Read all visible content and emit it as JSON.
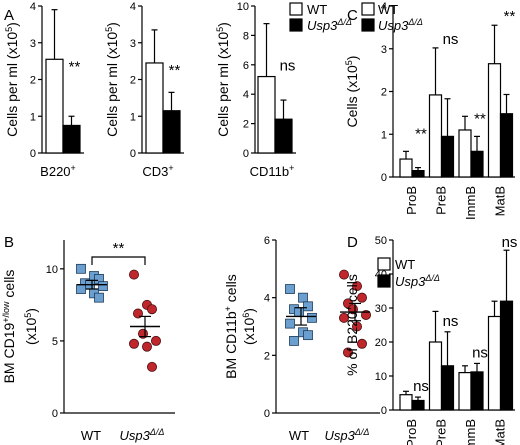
{
  "panel_labels": [
    "A",
    "B",
    "C",
    "D"
  ],
  "legend": {
    "wt": "WT",
    "ko": "Usp3",
    "ko_sup": "Δ/Δ"
  },
  "colors": {
    "wt_fill": "#ffffff",
    "ko_fill": "#000000",
    "wt_dot": "#6a9fd0",
    "ko_dot": "#c0272d"
  },
  "chart_data": [
    {
      "id": "A1",
      "type": "bar",
      "panel": "A",
      "ylabel": "Cells per ml (x10",
      "ylabel_sup": "5",
      "ylabel_end": ")",
      "xlabel": "B220",
      "xlabel_sup": "+",
      "ylim": [
        0,
        4
      ],
      "yticks": [
        0,
        1,
        2,
        3,
        4
      ],
      "series": [
        {
          "name": "WT",
          "values": [
            2.55
          ],
          "errors": [
            1.35
          ]
        },
        {
          "name": "Usp3Δ/Δ",
          "values": [
            0.75
          ],
          "errors": [
            0.25
          ]
        }
      ],
      "annotation": "**"
    },
    {
      "id": "A2",
      "type": "bar",
      "panel": "A",
      "ylabel": "Cells per ml (x10",
      "ylabel_sup": "5",
      "ylabel_end": ")",
      "xlabel": "CD3",
      "xlabel_sup": "+",
      "ylim": [
        0,
        4
      ],
      "yticks": [
        0,
        1,
        2,
        3,
        4
      ],
      "series": [
        {
          "name": "WT",
          "values": [
            2.45
          ],
          "errors": [
            0.9
          ]
        },
        {
          "name": "Usp3Δ/Δ",
          "values": [
            1.15
          ],
          "errors": [
            0.5
          ]
        }
      ],
      "annotation": "**"
    },
    {
      "id": "A3",
      "type": "bar",
      "panel": "A",
      "ylabel": "Cells per ml (x10",
      "ylabel_sup": "5",
      "ylabel_end": ")",
      "xlabel": "CD11b",
      "xlabel_sup": "+",
      "ylim": [
        0,
        10
      ],
      "yticks": [
        0,
        2,
        4,
        6,
        8,
        10
      ],
      "series": [
        {
          "name": "WT",
          "values": [
            5.2
          ],
          "errors": [
            3.6
          ]
        },
        {
          "name": "Usp3Δ/Δ",
          "values": [
            2.3
          ],
          "errors": [
            1.3
          ]
        }
      ],
      "annotation": "ns"
    },
    {
      "id": "B1",
      "type": "scatter",
      "panel": "B",
      "ylabel": "BM CD19",
      "ylabel_sup": "+/low",
      "ylabel_end": " cells",
      "ylabel2": "(x10",
      "ylabel2_sup": "5",
      "ylabel2_end": ")",
      "categories": [
        "WT",
        "Usp3"
      ],
      "category_sup": [
        "",
        "Δ/Δ"
      ],
      "ylim": [
        0,
        12
      ],
      "yticks": [
        0,
        5,
        10
      ],
      "series": [
        {
          "name": "WT",
          "values": [
            10.0,
            9.5,
            9.3,
            9.0,
            8.9,
            8.8,
            8.6,
            8.3,
            8.0
          ],
          "mean": 8.9,
          "sem": 0.3
        },
        {
          "name": "Usp3Δ/Δ",
          "values": [
            9.6,
            7.5,
            7.2,
            6.9,
            5.5,
            5.0,
            4.8,
            4.6,
            3.2
          ],
          "mean": 6.0,
          "sem": 0.7
        }
      ],
      "annotation": "**"
    },
    {
      "id": "B2",
      "type": "scatter",
      "panel": "B",
      "ylabel": "BM CD11b",
      "ylabel_sup": "+",
      "ylabel_end": " cells",
      "ylabel2": "(x10",
      "ylabel2_sup": "6",
      "ylabel2_end": ")",
      "categories": [
        "WT",
        "Usp3"
      ],
      "category_sup": [
        "",
        "Δ/Δ"
      ],
      "ylim": [
        0,
        6
      ],
      "yticks": [
        0,
        2,
        4,
        6
      ],
      "series": [
        {
          "name": "WT",
          "values": [
            4.3,
            4.0,
            3.7,
            3.6,
            3.5,
            3.3,
            3.1,
            2.8,
            2.7,
            2.5
          ],
          "mean": 3.35,
          "sem": 0.3
        },
        {
          "name": "Usp3Δ/Δ",
          "values": [
            4.8,
            4.4,
            4.0,
            3.8,
            3.6,
            3.4,
            3.3,
            3.0,
            2.4,
            2.1
          ],
          "mean": 3.5,
          "sem": 0.3
        }
      ]
    },
    {
      "id": "C",
      "type": "bar",
      "panel": "C",
      "ylabel": "Cells (x10",
      "ylabel_sup": "5",
      "ylabel_end": ")",
      "categories": [
        "ProB",
        "PreB",
        "ImmB",
        "MatB"
      ],
      "ylim": [
        0,
        4
      ],
      "yticks": [
        0,
        1,
        2,
        3,
        4
      ],
      "series": [
        {
          "name": "WT",
          "values": [
            0.42,
            1.92,
            1.1,
            2.65
          ],
          "errors": [
            0.18,
            1.1,
            0.32,
            0.9
          ]
        },
        {
          "name": "Usp3Δ/Δ",
          "values": [
            0.15,
            0.95,
            0.6,
            1.48
          ],
          "errors": [
            0.07,
            0.88,
            0.35,
            0.45
          ]
        }
      ],
      "annotations": [
        "**",
        "ns",
        "**",
        "**"
      ]
    },
    {
      "id": "D",
      "type": "bar",
      "panel": "D",
      "ylabel": "% of B220",
      "ylabel_sup": "+",
      "ylabel_end": " cells",
      "categories": [
        "ProB",
        "PreB",
        "ImmB",
        "MatB"
      ],
      "ylim": [
        0,
        50
      ],
      "yticks": [
        0,
        10,
        20,
        30,
        40,
        50
      ],
      "series": [
        {
          "name": "WT",
          "values": [
            4.5,
            20.0,
            11.0,
            27.5
          ],
          "errors": [
            1.0,
            9.0,
            2.0,
            4.5
          ]
        },
        {
          "name": "Usp3Δ/Δ",
          "values": [
            2.8,
            13.0,
            11.2,
            32.0
          ],
          "errors": [
            1.0,
            10.0,
            2.5,
            15.0
          ]
        }
      ],
      "annotations": [
        "ns",
        "ns",
        "ns",
        "ns"
      ]
    }
  ]
}
